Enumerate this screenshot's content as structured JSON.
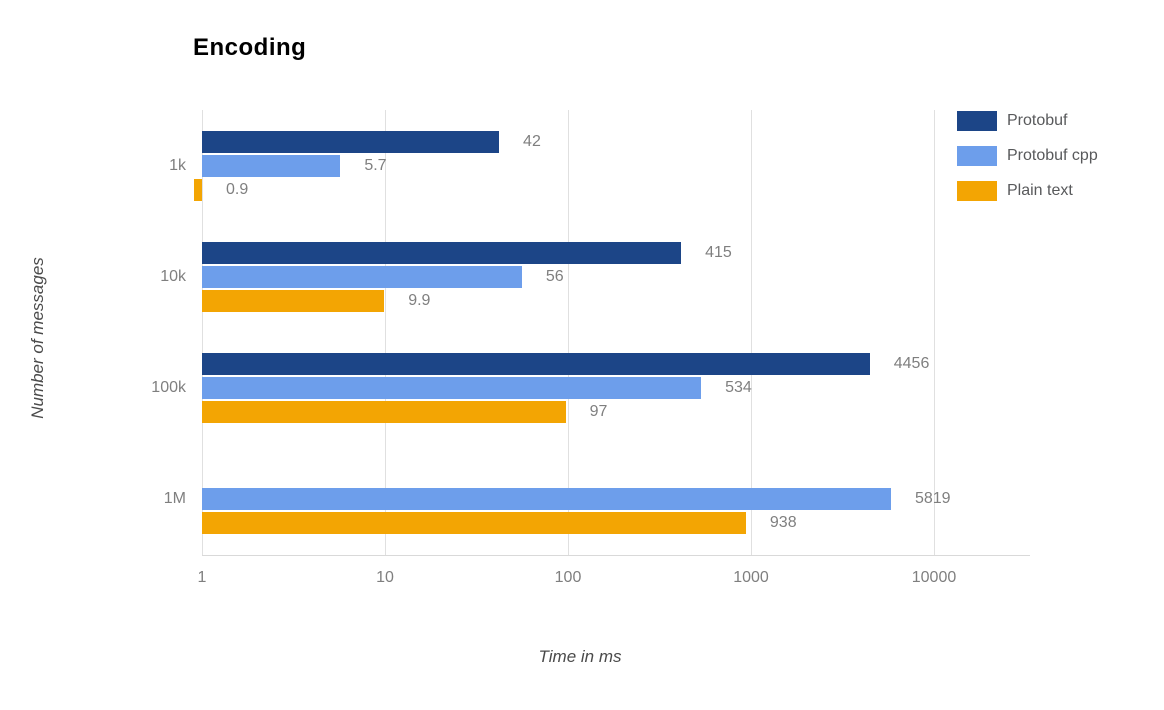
{
  "chart_data": {
    "type": "bar",
    "orientation": "horizontal",
    "title": "Encoding",
    "xlabel": "Time in ms",
    "ylabel": "Number of messages",
    "x_scale": "log",
    "xlim": [
      1,
      10000
    ],
    "x_ticks": [
      "1",
      "10",
      "100",
      "1000",
      "10000"
    ],
    "grid": true,
    "legend_position": "top-right",
    "categories": [
      "1k",
      "10k",
      "100k",
      "1M"
    ],
    "series": [
      {
        "name": "Protobuf",
        "color": "#1c4587",
        "values": [
          42,
          415,
          4456,
          null
        ]
      },
      {
        "name": "Protobuf cpp",
        "color": "#6d9eeb",
        "values": [
          5.7,
          56,
          534,
          5819
        ]
      },
      {
        "name": "Plain text",
        "color": "#f3a503",
        "values": [
          0.9,
          9.9,
          97,
          938
        ]
      }
    ],
    "value_labels": {
      "Protobuf": [
        "42",
        "415",
        "4456",
        null
      ],
      "Protobuf cpp": [
        "5.7",
        "56",
        "534",
        "5819"
      ],
      "Plain text": [
        "0.9",
        "9.9",
        "97",
        "938"
      ]
    }
  },
  "style": {
    "grid_color": "#e0e0e0",
    "label_color": "#7f7f7f",
    "axis_title_color": "#4a4a4a",
    "legend_text_color": "#58595b",
    "title_color": "#000000",
    "background": "#ffffff"
  }
}
